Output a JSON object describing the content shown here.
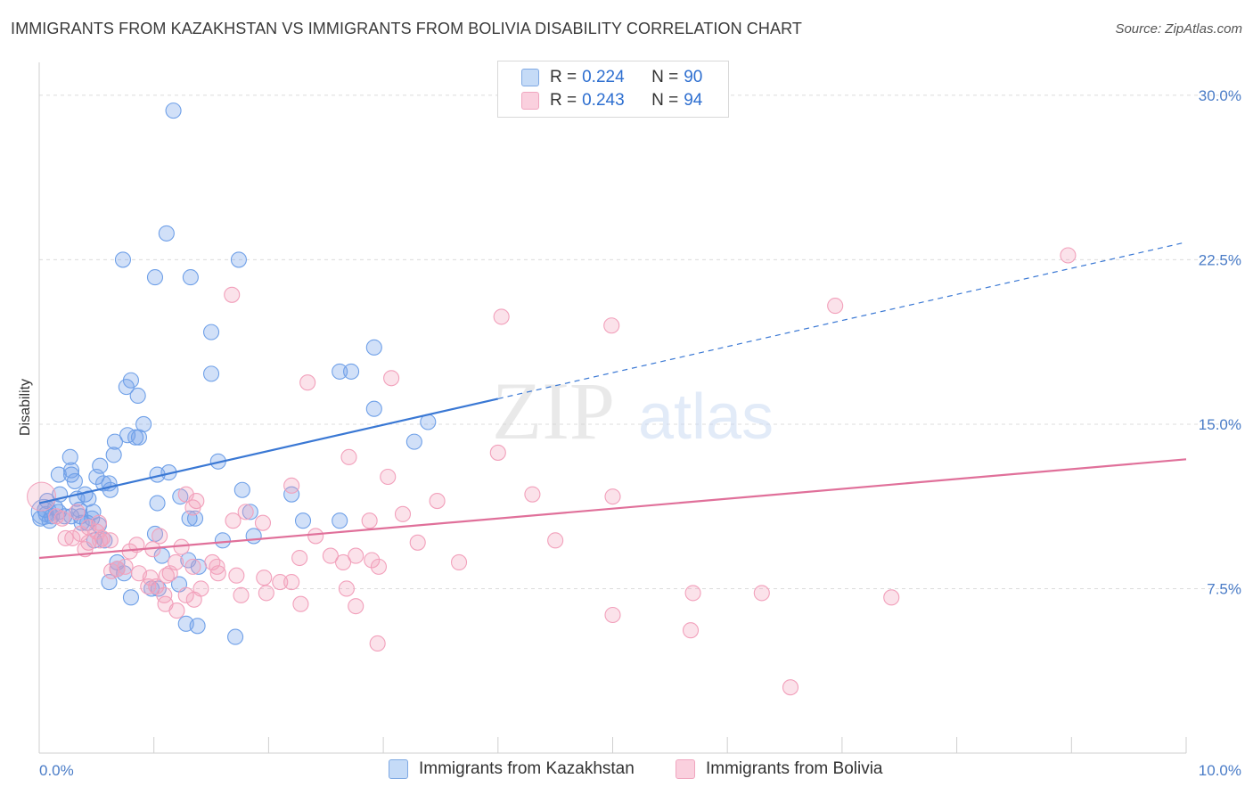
{
  "title": "IMMIGRANTS FROM KAZAKHSTAN VS IMMIGRANTS FROM BOLIVIA DISABILITY CORRELATION CHART",
  "source": "Source: ZipAtlas.com",
  "watermark": {
    "zip": "ZIP",
    "atlas": "atlas"
  },
  "legend": {
    "rows": [
      {
        "r_label": "R = ",
        "r_value": "0.224",
        "n_label": "N = ",
        "n_value": "90"
      },
      {
        "r_label": "R = ",
        "r_value": "0.243",
        "n_label": "N = ",
        "n_value": "94"
      }
    ]
  },
  "chart_data": {
    "type": "scatter",
    "title": "IMMIGRANTS FROM KAZAKHSTAN VS IMMIGRANTS FROM BOLIVIA DISABILITY CORRELATION CHART",
    "xlabel": "",
    "ylabel": "Disability",
    "xlim": [
      0,
      10
    ],
    "ylim": [
      0,
      31.5
    ],
    "x_tick_labels": [
      "0.0%",
      "10.0%"
    ],
    "y_ticks": [
      7.5,
      15.0,
      22.5,
      30.0
    ],
    "y_tick_labels": [
      "7.5%",
      "15.0%",
      "22.5%",
      "30.0%"
    ],
    "grid": true,
    "legend_position": "top-center",
    "colors": {
      "kazakhstan": "#6fa0e8",
      "bolivia": "#f2a0bb",
      "kaz_line": "#3a78d4",
      "bol_line": "#e0709a",
      "tick": "#4a7cc7"
    },
    "series": [
      {
        "name": "Immigrants from Kazakhstan",
        "R": 0.224,
        "N": 90,
        "trend": {
          "x0": 0.0,
          "y0": 11.4,
          "x1": 10.0,
          "y1": 23.3,
          "solid_until": 4.0
        },
        "points": [
          [
            1.17,
            29.3
          ],
          [
            1.11,
            23.7
          ],
          [
            0.73,
            22.5
          ],
          [
            1.74,
            22.5
          ],
          [
            1.01,
            21.7
          ],
          [
            1.32,
            21.7
          ],
          [
            1.5,
            19.2
          ],
          [
            2.92,
            18.5
          ],
          [
            2.62,
            17.4
          ],
          [
            2.72,
            17.4
          ],
          [
            1.5,
            17.3
          ],
          [
            0.8,
            17.0
          ],
          [
            0.76,
            16.7
          ],
          [
            0.86,
            16.3
          ],
          [
            2.92,
            15.7
          ],
          [
            3.39,
            15.1
          ],
          [
            0.91,
            15.0
          ],
          [
            0.77,
            14.5
          ],
          [
            0.84,
            14.4
          ],
          [
            0.87,
            14.4
          ],
          [
            3.27,
            14.2
          ],
          [
            0.66,
            14.2
          ],
          [
            0.65,
            13.6
          ],
          [
            0.27,
            13.5
          ],
          [
            1.56,
            13.3
          ],
          [
            0.53,
            13.1
          ],
          [
            0.28,
            12.9
          ],
          [
            0.28,
            12.7
          ],
          [
            0.17,
            12.7
          ],
          [
            1.03,
            12.7
          ],
          [
            1.13,
            12.8
          ],
          [
            0.5,
            12.6
          ],
          [
            0.31,
            12.4
          ],
          [
            0.56,
            12.3
          ],
          [
            0.61,
            12.3
          ],
          [
            0.62,
            12.0
          ],
          [
            1.77,
            12.0
          ],
          [
            0.18,
            11.8
          ],
          [
            0.4,
            11.8
          ],
          [
            2.2,
            11.8
          ],
          [
            0.33,
            11.6
          ],
          [
            0.43,
            11.6
          ],
          [
            1.23,
            11.7
          ],
          [
            1.03,
            11.4
          ],
          [
            0.07,
            11.5
          ],
          [
            0.14,
            11.2
          ],
          [
            0.05,
            11.1
          ],
          [
            0.17,
            11.0
          ],
          [
            0.35,
            11.1
          ],
          [
            0.47,
            11.0
          ],
          [
            0.28,
            10.8
          ],
          [
            0.06,
            10.9
          ],
          [
            0.11,
            10.8
          ],
          [
            0.22,
            10.8
          ],
          [
            0.36,
            10.8
          ],
          [
            0.46,
            10.7
          ],
          [
            0.37,
            10.5
          ],
          [
            0.42,
            10.5
          ],
          [
            0.52,
            10.4
          ],
          [
            0.01,
            10.7
          ],
          [
            0.09,
            10.6
          ],
          [
            1.31,
            10.7
          ],
          [
            1.36,
            10.7
          ],
          [
            1.84,
            11.0
          ],
          [
            2.3,
            10.6
          ],
          [
            2.62,
            10.6
          ],
          [
            1.01,
            10.0
          ],
          [
            1.6,
            9.7
          ],
          [
            1.87,
            9.9
          ],
          [
            0.57,
            9.7
          ],
          [
            0.48,
            9.7
          ],
          [
            1.07,
            9.0
          ],
          [
            0.68,
            8.7
          ],
          [
            1.3,
            8.8
          ],
          [
            1.39,
            8.5
          ],
          [
            0.68,
            8.4
          ],
          [
            0.74,
            8.2
          ],
          [
            0.61,
            7.8
          ],
          [
            0.98,
            7.5
          ],
          [
            1.04,
            7.5
          ],
          [
            1.22,
            7.7
          ],
          [
            0.8,
            7.1
          ],
          [
            1.28,
            5.9
          ],
          [
            1.38,
            5.8
          ],
          [
            1.71,
            5.3
          ]
        ]
      },
      {
        "name": "Immigrants from Bolivia",
        "R": 0.243,
        "N": 94,
        "trend": {
          "x0": 0.0,
          "y0": 8.9,
          "x1": 10.0,
          "y1": 13.4
        },
        "points": [
          [
            8.97,
            22.7
          ],
          [
            6.94,
            20.4
          ],
          [
            4.03,
            19.9
          ],
          [
            4.99,
            19.5
          ],
          [
            1.68,
            20.9
          ],
          [
            2.34,
            16.9
          ],
          [
            3.07,
            17.1
          ],
          [
            2.7,
            13.5
          ],
          [
            4.0,
            13.7
          ],
          [
            3.04,
            12.6
          ],
          [
            2.2,
            12.2
          ],
          [
            4.3,
            11.8
          ],
          [
            5.0,
            11.7
          ],
          [
            3.47,
            11.5
          ],
          [
            1.28,
            11.8
          ],
          [
            1.37,
            11.5
          ],
          [
            1.34,
            11.2
          ],
          [
            1.8,
            11.0
          ],
          [
            3.17,
            10.9
          ],
          [
            2.88,
            10.6
          ],
          [
            1.69,
            10.6
          ],
          [
            1.95,
            10.5
          ],
          [
            0.33,
            11.0
          ],
          [
            0.15,
            10.8
          ],
          [
            0.2,
            10.7
          ],
          [
            0.43,
            10.3
          ],
          [
            0.52,
            10.5
          ],
          [
            0.5,
            10.1
          ],
          [
            0.36,
            10.0
          ],
          [
            0.55,
            9.8
          ],
          [
            1.05,
            9.9
          ],
          [
            0.99,
            9.3
          ],
          [
            0.43,
            9.6
          ],
          [
            0.62,
            9.7
          ],
          [
            0.29,
            9.8
          ],
          [
            0.23,
            9.8
          ],
          [
            0.4,
            9.3
          ],
          [
            0.53,
            9.7
          ],
          [
            0.85,
            9.5
          ],
          [
            0.79,
            9.2
          ],
          [
            1.24,
            9.4
          ],
          [
            2.41,
            9.9
          ],
          [
            2.27,
            8.9
          ],
          [
            2.54,
            9.0
          ],
          [
            2.76,
            9.0
          ],
          [
            3.3,
            9.6
          ],
          [
            4.5,
            9.7
          ],
          [
            2.9,
            8.8
          ],
          [
            2.96,
            8.5
          ],
          [
            3.66,
            8.7
          ],
          [
            2.65,
            8.7
          ],
          [
            1.19,
            8.7
          ],
          [
            1.34,
            8.5
          ],
          [
            1.51,
            8.7
          ],
          [
            1.55,
            8.5
          ],
          [
            1.14,
            8.2
          ],
          [
            0.97,
            8.0
          ],
          [
            0.87,
            8.2
          ],
          [
            0.75,
            8.5
          ],
          [
            0.68,
            8.4
          ],
          [
            0.63,
            8.3
          ],
          [
            1.11,
            8.1
          ],
          [
            1.56,
            8.2
          ],
          [
            1.72,
            8.1
          ],
          [
            1.96,
            8.0
          ],
          [
            2.2,
            7.8
          ],
          [
            2.1,
            7.8
          ],
          [
            0.95,
            7.6
          ],
          [
            1.02,
            7.6
          ],
          [
            1.09,
            7.2
          ],
          [
            1.41,
            7.5
          ],
          [
            1.28,
            7.2
          ],
          [
            1.35,
            7.0
          ],
          [
            1.76,
            7.2
          ],
          [
            1.98,
            7.3
          ],
          [
            2.28,
            6.8
          ],
          [
            2.68,
            7.5
          ],
          [
            2.76,
            6.7
          ],
          [
            1.1,
            6.8
          ],
          [
            1.2,
            6.5
          ],
          [
            5.7,
            7.3
          ],
          [
            6.3,
            7.3
          ],
          [
            7.43,
            7.1
          ],
          [
            5.0,
            6.3
          ],
          [
            5.68,
            5.6
          ],
          [
            2.95,
            5.0
          ],
          [
            6.55,
            3.0
          ]
        ]
      }
    ]
  },
  "bottom_legend": [
    {
      "label": "Immigrants from Kazakhstan"
    },
    {
      "label": "Immigrants from Bolivia"
    }
  ]
}
